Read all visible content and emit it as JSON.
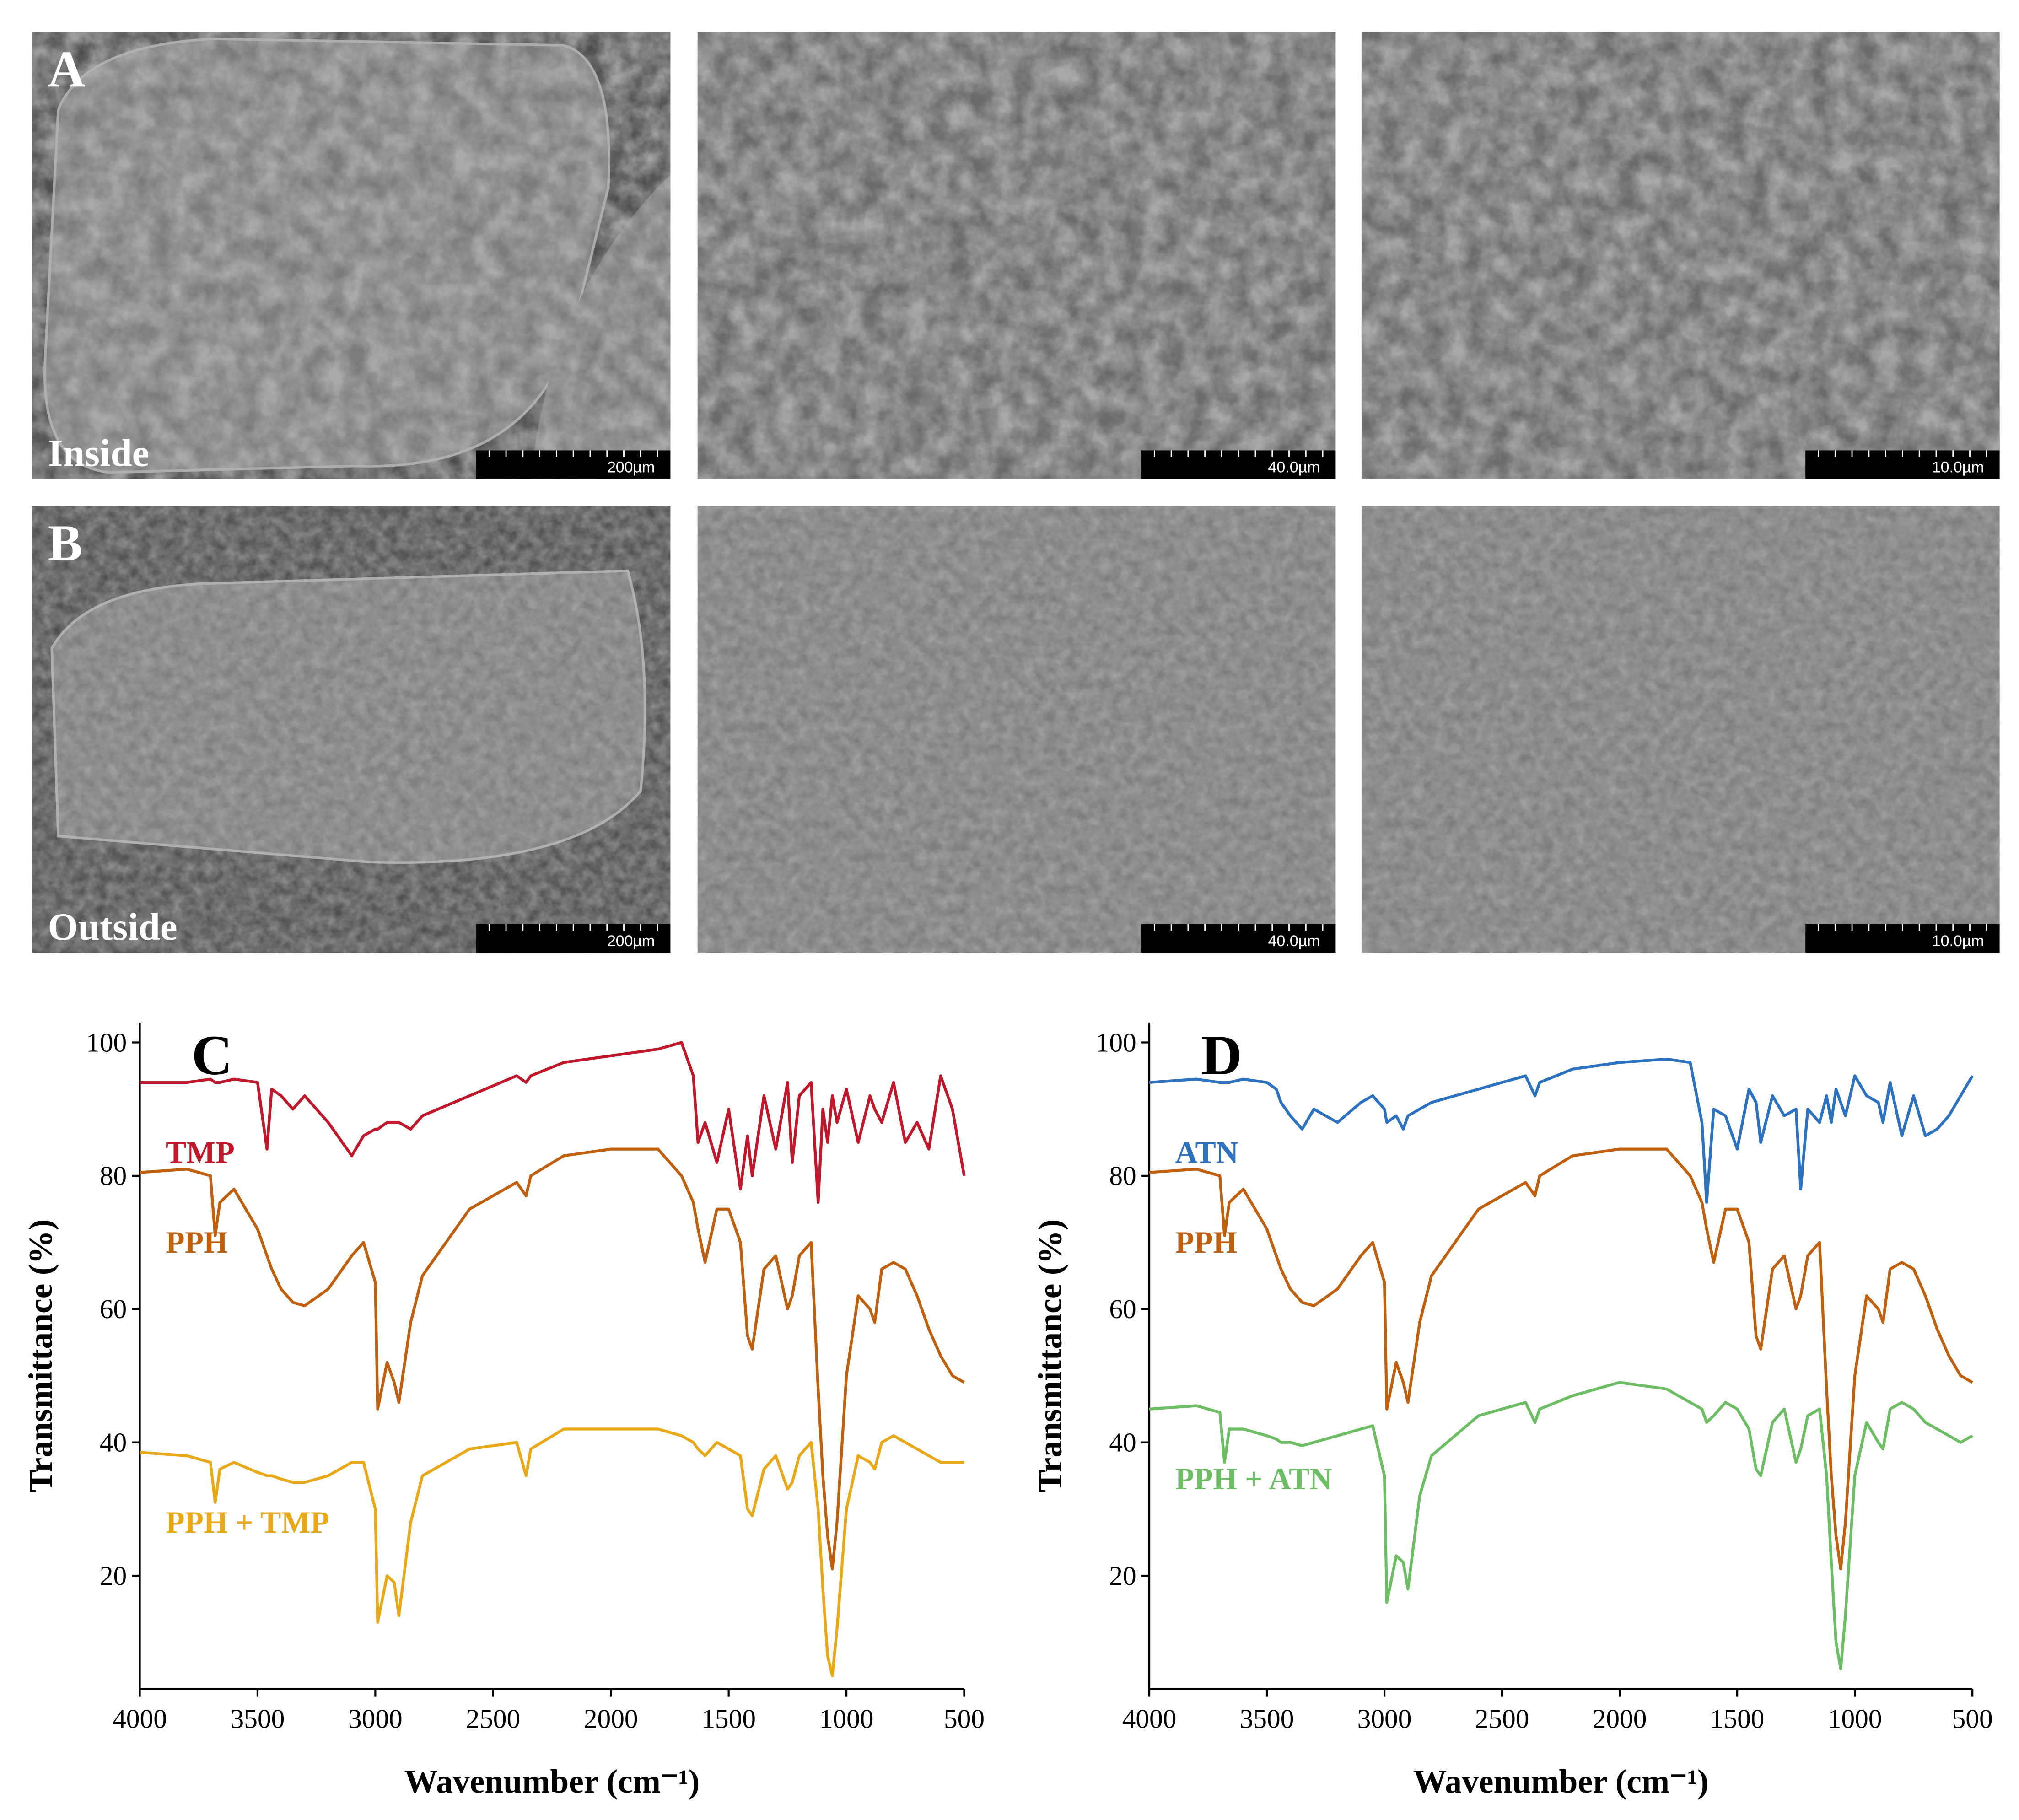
{
  "sem_panels": [
    {
      "label": "A",
      "caption": "Inside",
      "scale_bars": [
        "200µm",
        "40.0µm",
        "10.0µm"
      ]
    },
    {
      "label": "B",
      "caption": "Outside",
      "scale_bars": [
        "200µm",
        "40.0µm",
        "10.0µm"
      ]
    }
  ],
  "chart_data": [
    {
      "type": "line",
      "panel_label": "C",
      "x_label": "Wavenumber (cm⁻¹)",
      "y_label": "Transmittance (%)",
      "xlim": [
        4000,
        500
      ],
      "xticks": [
        4000,
        3500,
        3000,
        2500,
        2000,
        1500,
        1000,
        500
      ],
      "ylim": [
        3,
        103
      ],
      "yticks": [
        20,
        40,
        60,
        80,
        100
      ],
      "x": [
        4000,
        3800,
        3700,
        3680,
        3660,
        3600,
        3500,
        3460,
        3440,
        3400,
        3350,
        3300,
        3200,
        3100,
        3050,
        3000,
        2990,
        2950,
        2920,
        2900,
        2850,
        2800,
        2600,
        2400,
        2360,
        2340,
        2200,
        2000,
        1800,
        1700,
        1650,
        1630,
        1600,
        1550,
        1500,
        1450,
        1420,
        1400,
        1350,
        1300,
        1250,
        1230,
        1200,
        1150,
        1120,
        1100,
        1080,
        1060,
        1040,
        1000,
        950,
        900,
        880,
        850,
        800,
        750,
        700,
        650,
        600,
        550,
        500
      ],
      "series": [
        {
          "name": "TMP",
          "color": "#c0172b",
          "values": [
            94,
            94,
            94.5,
            94,
            94,
            94.5,
            94,
            84,
            93,
            92,
            90,
            92,
            88,
            83,
            86,
            87,
            87,
            88,
            88,
            88,
            87,
            89,
            92,
            95,
            94,
            95,
            97,
            98,
            99,
            100,
            95,
            85,
            88,
            82,
            90,
            78,
            86,
            80,
            92,
            84,
            94,
            82,
            92,
            94,
            76,
            90,
            85,
            92,
            88,
            93,
            85,
            92,
            90,
            88,
            94,
            85,
            88,
            84,
            95,
            90,
            80
          ]
        },
        {
          "name": "PPH",
          "color": "#c0600e",
          "values": [
            80.5,
            81,
            80,
            71,
            76,
            78,
            72,
            68,
            66,
            63,
            61,
            60.5,
            63,
            68,
            70,
            64,
            45,
            52,
            49,
            46,
            58,
            65,
            75,
            79,
            77,
            80,
            83,
            84,
            84,
            80,
            76,
            72,
            67,
            75,
            75,
            70,
            56,
            54,
            66,
            68,
            60,
            62,
            68,
            70,
            48,
            35,
            26,
            21,
            28,
            50,
            62,
            60,
            58,
            66,
            67,
            66,
            62,
            57,
            53,
            50,
            49
          ]
        },
        {
          "name": "PPH + TMP",
          "color": "#e8a818",
          "values": [
            38.5,
            38,
            37,
            31,
            36,
            37,
            35.5,
            35,
            35,
            34.5,
            34,
            34,
            35,
            37,
            37,
            30,
            13,
            20,
            19,
            14,
            28,
            35,
            39,
            40,
            35,
            39,
            42,
            42,
            42,
            41,
            40,
            39,
            38,
            40,
            39,
            38,
            30,
            29,
            36,
            38,
            33,
            34,
            38,
            40,
            30,
            18,
            8,
            5,
            12,
            30,
            38,
            37,
            36,
            40,
            41,
            40,
            39,
            38,
            37,
            37,
            37
          ]
        }
      ]
    },
    {
      "type": "line",
      "panel_label": "D",
      "x_label": "Wavenumber (cm⁻¹)",
      "y_label": "Transmittance (%)",
      "xlim": [
        4000,
        500
      ],
      "xticks": [
        4000,
        3500,
        3000,
        2500,
        2000,
        1500,
        1000,
        500
      ],
      "ylim": [
        3,
        103
      ],
      "yticks": [
        20,
        40,
        60,
        80,
        100
      ],
      "x": [
        4000,
        3800,
        3700,
        3680,
        3660,
        3600,
        3500,
        3460,
        3440,
        3400,
        3350,
        3300,
        3200,
        3100,
        3050,
        3000,
        2990,
        2950,
        2920,
        2900,
        2850,
        2800,
        2600,
        2400,
        2360,
        2340,
        2200,
        2000,
        1800,
        1700,
        1650,
        1630,
        1600,
        1550,
        1500,
        1450,
        1420,
        1400,
        1350,
        1300,
        1250,
        1230,
        1200,
        1150,
        1120,
        1100,
        1080,
        1060,
        1040,
        1000,
        950,
        900,
        880,
        850,
        800,
        750,
        700,
        650,
        600,
        550,
        500
      ],
      "series": [
        {
          "name": "ATN",
          "color": "#2c72c0",
          "values": [
            94,
            94.5,
            94,
            94,
            94,
            94.5,
            94,
            93,
            91,
            89,
            87,
            90,
            88,
            91,
            92,
            90,
            88,
            89,
            87,
            89,
            90,
            91,
            93,
            95,
            92,
            94,
            96,
            97,
            97.5,
            97,
            88,
            76,
            90,
            89,
            84,
            93,
            91,
            85,
            92,
            89,
            90,
            78,
            90,
            88,
            92,
            88,
            93,
            91,
            89,
            95,
            92,
            91,
            88,
            94,
            86,
            92,
            86,
            87,
            89,
            92,
            95
          ]
        },
        {
          "name": "PPH",
          "color": "#c0600e",
          "values": [
            80.5,
            81,
            80,
            71,
            76,
            78,
            72,
            68,
            66,
            63,
            61,
            60.5,
            63,
            68,
            70,
            64,
            45,
            52,
            49,
            46,
            58,
            65,
            75,
            79,
            77,
            80,
            83,
            84,
            84,
            80,
            76,
            72,
            67,
            75,
            75,
            70,
            56,
            54,
            66,
            68,
            60,
            62,
            68,
            70,
            48,
            35,
            26,
            21,
            28,
            50,
            62,
            60,
            58,
            66,
            67,
            66,
            62,
            57,
            53,
            50,
            49
          ]
        },
        {
          "name": "PPH + ATN",
          "color": "#6cbd64",
          "values": [
            45,
            45.5,
            44.5,
            37,
            42,
            42,
            41,
            40.5,
            40,
            40,
            39.5,
            40,
            41,
            42,
            42.5,
            35,
            16,
            23,
            22,
            18,
            32,
            38,
            44,
            46,
            43,
            45,
            47,
            49,
            48,
            46,
            45,
            43,
            44,
            46,
            45,
            42,
            36,
            35,
            43,
            45,
            37,
            39,
            44,
            45,
            35,
            22,
            10,
            6,
            14,
            35,
            43,
            40,
            39,
            45,
            46,
            45,
            43,
            42,
            41,
            40,
            41
          ]
        }
      ]
    }
  ]
}
